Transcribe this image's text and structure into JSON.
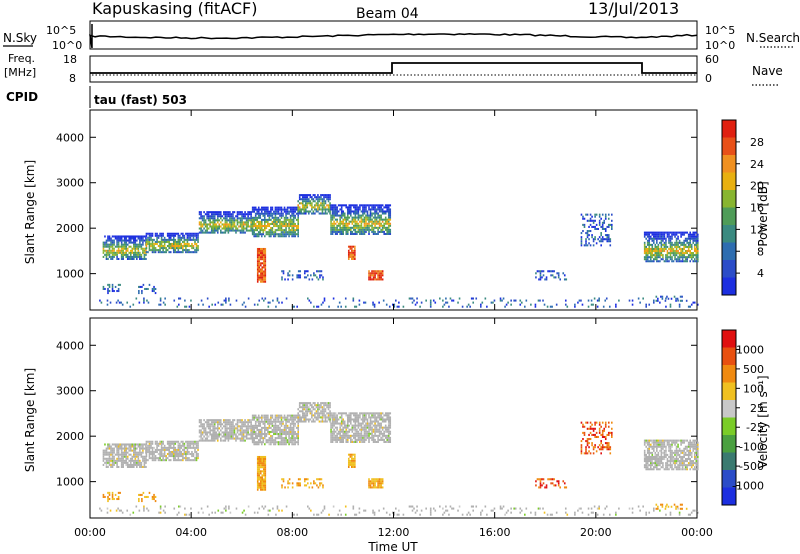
{
  "header": {
    "station": "Kapuskasing (fitACF)",
    "beam": "Beam 04",
    "date": "13/Jul/2013"
  },
  "noise_panel": {
    "left_label": "N.Sky",
    "right_label": "N.Search",
    "left_ticks": [
      "10^5",
      "10^0"
    ],
    "right_ticks": [
      "10^5",
      "10^0"
    ]
  },
  "freq_panel": {
    "left_label_1": "Freq.",
    "left_label_2": "[MHz]",
    "right_label": "Nave",
    "left_ticks": [
      "18",
      "8"
    ],
    "right_ticks": [
      "60",
      "0"
    ]
  },
  "cpid": {
    "label": "CPID",
    "value": "tau (fast) 503"
  },
  "colors": {
    "power_scale": [
      "#1c2fe0",
      "#2b4cc8",
      "#2e6db0",
      "#3a8a80",
      "#4f9c58",
      "#88b530",
      "#e8b010",
      "#f09020",
      "#e85018",
      "#e02010"
    ],
    "velocity_scale": [
      "#1c2fe0",
      "#2b4cc8",
      "#3a7a70",
      "#4aa040",
      "#7acc28",
      "#c8c8c8",
      "#f0c020",
      "#f08a10",
      "#e85010",
      "#e01010"
    ],
    "ground_scatter": "#b0b0b0"
  },
  "chart_data": [
    {
      "type": "heatmap",
      "name_ref": "power",
      "ylabel": "Slant Range [km]",
      "yticks": [
        "4000",
        "3000",
        "2000",
        "1000"
      ],
      "colorbar_label": "Power [dB]",
      "colorbar_ticks": [
        "28",
        "24",
        "20",
        "16",
        "12",
        "8",
        "4"
      ],
      "ylim": [
        200,
        4600
      ],
      "clim": [
        0,
        32
      ]
    },
    {
      "type": "heatmap",
      "name_ref": "velocity",
      "ylabel": "Slant Range [km]",
      "yticks": [
        "4000",
        "3000",
        "2000",
        "1000"
      ],
      "colorbar_label": "Velocity [m s⁻¹]",
      "colorbar_ticks": [
        "1000",
        "500",
        "100",
        "25",
        "-25",
        "-100",
        "-500",
        "-1000"
      ],
      "ylim": [
        200,
        4600
      ]
    }
  ],
  "xaxis": {
    "ticks": [
      "00:00",
      "04:00",
      "08:00",
      "12:00",
      "16:00",
      "20:00",
      "00:00"
    ],
    "label": "Time UT",
    "range_hours": [
      0,
      24
    ]
  },
  "echo_regions": [
    {
      "t0": 0.5,
      "t1": 2.2,
      "r_top": 1820,
      "r_bot": 1300,
      "kind": "band"
    },
    {
      "t0": 2.2,
      "t1": 4.3,
      "r_top": 1880,
      "r_bot": 1450,
      "kind": "band"
    },
    {
      "t0": 4.3,
      "t1": 6.4,
      "r_top": 2350,
      "r_bot": 1880,
      "kind": "band"
    },
    {
      "t0": 6.4,
      "t1": 8.2,
      "r_top": 2450,
      "r_bot": 1800,
      "kind": "band"
    },
    {
      "t0": 8.2,
      "t1": 9.5,
      "r_top": 2750,
      "r_bot": 2300,
      "kind": "band"
    },
    {
      "t0": 9.5,
      "t1": 11.9,
      "r_top": 2500,
      "r_bot": 1850,
      "kind": "band"
    },
    {
      "t0": 21.9,
      "t1": 24.0,
      "r_top": 1900,
      "r_bot": 1250,
      "kind": "band"
    },
    {
      "t0": 6.6,
      "t1": 6.9,
      "r_top": 1550,
      "r_bot": 800,
      "kind": "blob"
    },
    {
      "t0": 11.0,
      "t1": 11.6,
      "r_top": 1050,
      "r_bot": 850,
      "kind": "blob"
    },
    {
      "t0": 10.2,
      "t1": 10.5,
      "r_top": 1600,
      "r_bot": 1300,
      "kind": "blob"
    },
    {
      "t0": 7.5,
      "t1": 9.2,
      "r_top": 1050,
      "r_bot": 850,
      "kind": "patch"
    },
    {
      "t0": 0.5,
      "t1": 1.2,
      "r_top": 750,
      "r_bot": 550,
      "kind": "patch"
    },
    {
      "t0": 1.9,
      "t1": 2.6,
      "r_top": 750,
      "r_bot": 550,
      "kind": "patch"
    },
    {
      "t0": 19.4,
      "t1": 20.6,
      "r_top": 2300,
      "r_bot": 1600,
      "kind": "sparse"
    },
    {
      "t0": 17.6,
      "t1": 18.8,
      "r_top": 1050,
      "r_bot": 850,
      "kind": "sparse"
    },
    {
      "t0": 22.3,
      "t1": 23.6,
      "r_top": 500,
      "r_bot": 380,
      "kind": "patch"
    },
    {
      "t0": 0.3,
      "t1": 24.0,
      "r_top": 450,
      "r_bot": 250,
      "kind": "floor"
    }
  ]
}
